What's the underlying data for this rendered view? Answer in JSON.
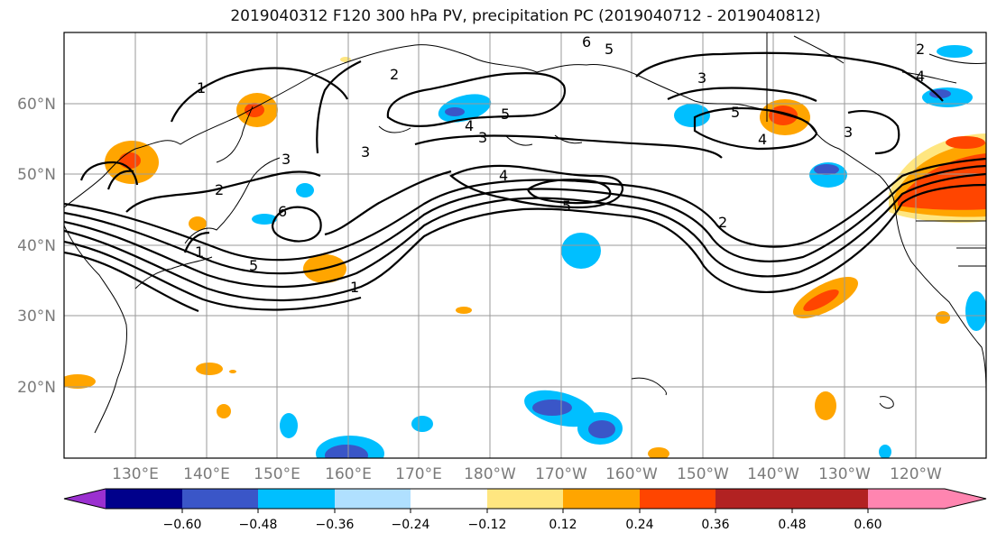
{
  "title": "2019040312 F120 300 hPa PV, precipitation PC (2019040712 - 2019040812)",
  "lat_labels": [
    "60°N",
    "50°N",
    "40°N",
    "30°N",
    "20°N"
  ],
  "lon_labels": [
    "130°E",
    "140°E",
    "150°E",
    "160°E",
    "170°E",
    "180°W",
    "170°W",
    "160°W",
    "150°W",
    "140°W",
    "130°W",
    "120°W"
  ],
  "colorbar": {
    "ticks": [
      "−0.60",
      "−0.48",
      "−0.36",
      "−0.24",
      "−0.12",
      "0.12",
      "0.24",
      "0.36",
      "0.48",
      "0.60"
    ],
    "colors": [
      "#9b30d0",
      "#00008b",
      "#3a56c8",
      "#00bfff",
      "#b0e0ff",
      "#ffffff",
      "#ffe680",
      "#ffa500",
      "#ff4500",
      "#b22222",
      "#ff85b0"
    ]
  },
  "contour_labels": [
    "1",
    "2",
    "3",
    "4",
    "5",
    "6",
    "1",
    "5",
    "3",
    "4",
    "5",
    "4",
    "3",
    "3",
    "5",
    "2",
    "5",
    "6",
    "4",
    "2",
    "3",
    "2",
    "1"
  ]
}
